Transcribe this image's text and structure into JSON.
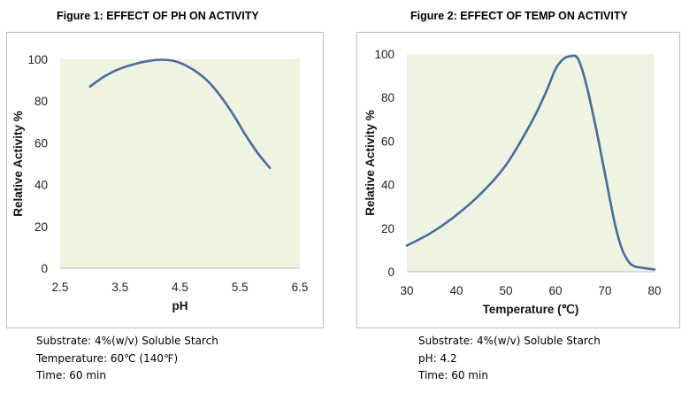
{
  "chart_data": [
    {
      "type": "line",
      "title": "Figure 1: EFFECT OF PH ON ACTIVITY",
      "xlabel": "pH",
      "ylabel": "Relative Activity %",
      "xlim": [
        2.5,
        6.5
      ],
      "ylim": [
        0,
        100
      ],
      "xticks": [
        "2.5",
        "3.5",
        "4.5",
        "5.5",
        "6.5"
      ],
      "xtick_values": [
        2.5,
        3.5,
        4.5,
        5.5,
        6.5
      ],
      "yticks": [
        "0",
        "20",
        "40",
        "60",
        "80",
        "100"
      ],
      "ytick_values": [
        0,
        20,
        40,
        60,
        80,
        100
      ],
      "grid": false,
      "line_color": "#4a6a9c",
      "plot_bg": "#eef3e2",
      "series": [
        {
          "x": [
            3.0,
            3.25,
            3.5,
            3.75,
            4.0,
            4.2,
            4.4,
            4.6,
            4.8,
            5.0,
            5.2,
            5.4,
            5.6,
            5.8,
            6.0
          ],
          "y": [
            87,
            92,
            95.5,
            97.8,
            99.3,
            99.8,
            99.2,
            97,
            93.5,
            88.5,
            81.5,
            73,
            63.5,
            55,
            48
          ]
        }
      ],
      "notes": [
        "Substrate: 4%(w/v) Soluble Starch",
        "Temperature: 60℃ (140℉)",
        "Time: 60 min"
      ]
    },
    {
      "type": "line",
      "title": "Figure 2: EFFECT OF TEMP ON ACTIVITY",
      "xlabel": "Temperature (℃)",
      "ylabel": "Relative  Activity %",
      "xlim": [
        30,
        80
      ],
      "ylim": [
        0,
        100
      ],
      "xticks": [
        "30",
        "40",
        "50",
        "60",
        "70",
        "80"
      ],
      "xtick_values": [
        30,
        40,
        50,
        60,
        70,
        80
      ],
      "yticks": [
        "0",
        "20",
        "40",
        "60",
        "80",
        "100"
      ],
      "ytick_values": [
        0,
        20,
        40,
        60,
        80,
        100
      ],
      "grid": false,
      "line_color": "#4a6a9c",
      "plot_bg": "#eef3e2",
      "series": [
        {
          "x": [
            30,
            35,
            40,
            45,
            50,
            55,
            58,
            60,
            61.5,
            63,
            64.5,
            66,
            68,
            70,
            72,
            73.5,
            75,
            76,
            77,
            78.5,
            80
          ],
          "y": [
            12,
            18,
            26,
            36,
            49,
            68,
            82,
            93,
            97.5,
            99,
            98,
            88,
            68,
            45,
            22,
            10,
            4,
            2.5,
            2,
            1.5,
            1
          ]
        }
      ],
      "notes": [
        "Substrate: 4%(w/v) Soluble Starch",
        "pH: 4.2",
        "Time: 60 min"
      ]
    }
  ]
}
